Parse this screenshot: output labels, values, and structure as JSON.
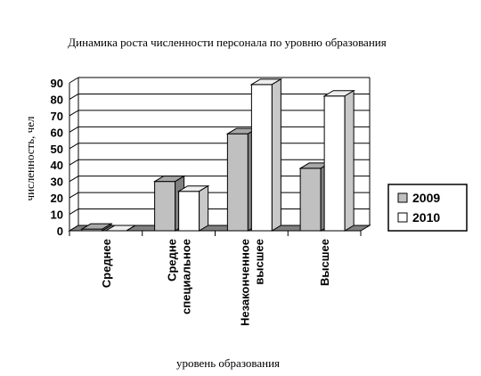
{
  "chart_data": {
    "type": "bar",
    "title": "Динамика роста численности персонала по уровню образования",
    "xlabel": "уровень образования",
    "ylabel": "численность, чел",
    "categories": [
      [
        "Среднее"
      ],
      [
        "Средне",
        "специальное"
      ],
      [
        "Незаконченное",
        "высшее"
      ],
      [
        "Высшее"
      ]
    ],
    "series": [
      {
        "name": "2009",
        "values": [
          1,
          30,
          59,
          38
        ],
        "color": "#c0c0c0"
      },
      {
        "name": "2010",
        "values": [
          0,
          24,
          89,
          82
        ],
        "color": "#ffffff"
      }
    ],
    "ylim": [
      0,
      90
    ],
    "yticks": [
      0,
      10,
      20,
      30,
      40,
      50,
      60,
      70,
      80,
      90
    ],
    "grid": true,
    "legend": "right",
    "view": "3d-column"
  }
}
